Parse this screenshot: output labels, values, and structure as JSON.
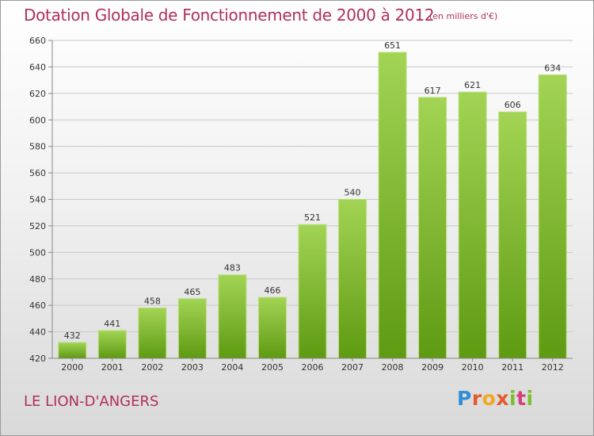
{
  "header": {
    "title": "Dotation Globale de Fonctionnement de 2000 à 2012",
    "subtitle": "(en milliers d'€)"
  },
  "footer": {
    "commune": "LE LION-D'ANGERS",
    "logo_text": "Proxiti"
  },
  "colors": {
    "title": "#b0305a",
    "bar_light": "#9fd14f",
    "bar_dark": "#5f9c12",
    "grid": "#c8c8c8"
  },
  "chart_data": {
    "type": "bar",
    "categories": [
      "2000",
      "2001",
      "2002",
      "2003",
      "2004",
      "2005",
      "2006",
      "2007",
      "2008",
      "2009",
      "2010",
      "2011",
      "2012"
    ],
    "values": [
      432,
      441,
      458,
      465,
      483,
      466,
      521,
      540,
      651,
      617,
      621,
      606,
      634
    ],
    "title": "Dotation Globale de Fonctionnement de 2000 à 2012",
    "subtitle": "(en milliers d'€)",
    "xlabel": "",
    "ylabel": "",
    "ylim": [
      420,
      660
    ],
    "yticks": [
      420,
      440,
      460,
      480,
      500,
      520,
      540,
      560,
      580,
      600,
      620,
      640,
      660
    ],
    "grid": true,
    "data_labels": true
  }
}
